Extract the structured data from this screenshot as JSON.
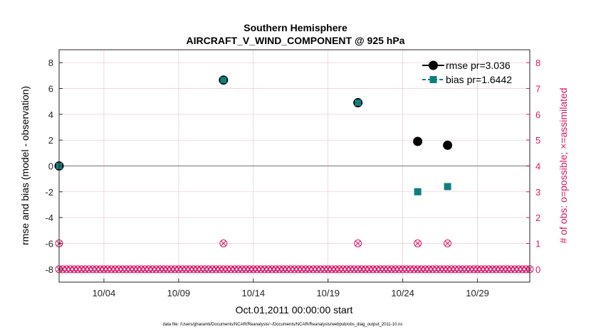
{
  "chart_data": {
    "type": "scatter",
    "title": "Southern Hemisphere",
    "subtitle": "AIRCRAFT_V_WIND_COMPONENT @ 925 hPa",
    "xlabel": "Oct.01,2011 00:00:00 start",
    "ylabel_left": "rmse and bias (model - observation)",
    "ylabel_right": "# of obs: o=possible; ×=assimilated",
    "footer": "data file: /Users/gharamti/Documents/NCAR/Reanalysis/~/Documents/NCAR/Reanalysis/webpub/obs_diag_output_2011-10.nc",
    "xlim": [
      1,
      32.5
    ],
    "ylim_left": [
      -9,
      9
    ],
    "ylim_right": [
      -0.5,
      8.5
    ],
    "x_ticks": [
      {
        "value": 4,
        "label": "10/04"
      },
      {
        "value": 9,
        "label": "10/09"
      },
      {
        "value": 14,
        "label": "10/14"
      },
      {
        "value": 19,
        "label": "10/19"
      },
      {
        "value": 24,
        "label": "10/24"
      },
      {
        "value": 29,
        "label": "10/29"
      }
    ],
    "y_ticks_left": [
      -8,
      -6,
      -4,
      -2,
      0,
      2,
      4,
      6,
      8
    ],
    "y_ticks_right": [
      0,
      1,
      2,
      3,
      4,
      5,
      6,
      7,
      8
    ],
    "grid": true,
    "legend_position": "top-right",
    "colors": {
      "rmse": "#000000",
      "bias": "#0f7f7f",
      "obs": "#d6196b",
      "zero_line": "#b0b0b0",
      "grid": "#e8c8d4"
    },
    "series": [
      {
        "name": "rmse pr=3.036",
        "marker": "circle",
        "points": [
          {
            "x": 1.0,
            "y": 0.0
          },
          {
            "x": 12.0,
            "y": 6.65
          },
          {
            "x": 21.0,
            "y": 4.9
          },
          {
            "x": 25.0,
            "y": 1.9
          },
          {
            "x": 27.0,
            "y": 1.6
          }
        ]
      },
      {
        "name": "bias pr=1.6442",
        "marker": "square",
        "points": [
          {
            "x": 1.0,
            "y": 0.0
          },
          {
            "x": 12.0,
            "y": 6.65
          },
          {
            "x": 21.0,
            "y": 4.9
          },
          {
            "x": 25.0,
            "y": -2.0
          },
          {
            "x": 27.0,
            "y": -1.6
          }
        ]
      }
    ],
    "obs_counts": {
      "x_start": 1.0,
      "x_end": 32.5,
      "x_step": 0.25,
      "nonzero": [
        {
          "x": 1.0,
          "possible": 1,
          "assimilated": 1
        },
        {
          "x": 12.0,
          "possible": 1,
          "assimilated": 1
        },
        {
          "x": 21.0,
          "possible": 1,
          "assimilated": 1
        },
        {
          "x": 25.0,
          "possible": 1,
          "assimilated": 1
        },
        {
          "x": 27.0,
          "possible": 1,
          "assimilated": 1
        }
      ]
    }
  }
}
